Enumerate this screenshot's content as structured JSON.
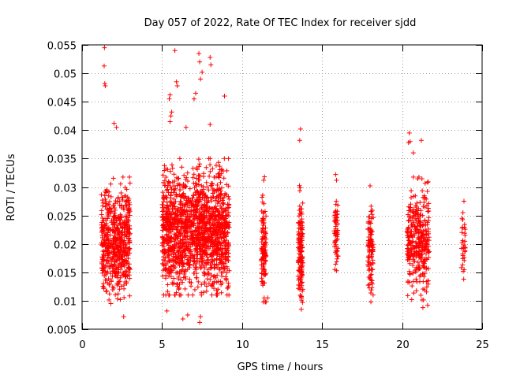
{
  "chart_data": {
    "type": "scatter",
    "title": "Day 057 of 2022, Rate Of TEC Index for receiver sjdd",
    "xlabel": "GPS time / hours",
    "ylabel": "ROTI / TECUs",
    "xlim": [
      0,
      25
    ],
    "ylim": [
      0.005,
      0.055
    ],
    "x_ticks": [
      0,
      5,
      10,
      15,
      20,
      25
    ],
    "y_ticks": [
      0.005,
      0.01,
      0.015,
      0.02,
      0.025,
      0.03,
      0.035,
      0.04,
      0.045,
      0.05,
      0.055
    ],
    "x_tick_labels": [
      "0",
      "5",
      "10",
      "15",
      "20",
      "25"
    ],
    "y_tick_labels": [
      "0.005",
      "0.01",
      "0.015",
      "0.02",
      "0.025",
      "0.03",
      "0.035",
      "0.04",
      "0.045",
      "0.05",
      "0.055"
    ],
    "grid": true,
    "marker": "+",
    "series": [
      {
        "name": "ROTI",
        "color": "#ff0000",
        "clusters": [
          {
            "x_range": [
              1.2,
              3.0
            ],
            "y_center": 0.0205,
            "y_spread": 0.0045,
            "count": 560
          },
          {
            "x_range": [
              5.0,
              9.2
            ],
            "y_center": 0.0225,
            "y_spread": 0.005,
            "count": 1500
          },
          {
            "x_range": [
              11.2,
              11.5
            ],
            "y_center": 0.019,
            "y_spread": 0.004,
            "count": 110
          },
          {
            "x_range": [
              13.5,
              13.8
            ],
            "y_center": 0.019,
            "y_spread": 0.0045,
            "count": 150
          },
          {
            "x_range": [
              15.75,
              16.0
            ],
            "y_center": 0.022,
            "y_spread": 0.003,
            "count": 60
          },
          {
            "x_range": [
              17.85,
              18.2
            ],
            "y_center": 0.019,
            "y_spread": 0.0035,
            "count": 100
          },
          {
            "x_range": [
              20.3,
              21.7
            ],
            "y_center": 0.0205,
            "y_spread": 0.0045,
            "count": 330
          },
          {
            "x_range": [
              23.7,
              23.95
            ],
            "y_center": 0.02,
            "y_spread": 0.003,
            "count": 30
          }
        ],
        "extra_points": [
          [
            1.4,
            0.0545
          ],
          [
            1.38,
            0.0513
          ],
          [
            1.42,
            0.0482
          ],
          [
            1.45,
            0.0478
          ],
          [
            2.0,
            0.0412
          ],
          [
            2.15,
            0.0405
          ],
          [
            2.6,
            0.0072
          ],
          [
            1.8,
            0.0095
          ],
          [
            5.8,
            0.054
          ],
          [
            7.3,
            0.0535
          ],
          [
            7.35,
            0.052
          ],
          [
            7.5,
            0.0502
          ],
          [
            7.4,
            0.049
          ],
          [
            8.0,
            0.0528
          ],
          [
            8.05,
            0.0515
          ],
          [
            5.9,
            0.0485
          ],
          [
            5.95,
            0.0478
          ],
          [
            5.5,
            0.0462
          ],
          [
            5.45,
            0.0455
          ],
          [
            7.1,
            0.0465
          ],
          [
            7.0,
            0.0455
          ],
          [
            5.6,
            0.0432
          ],
          [
            5.55,
            0.0425
          ],
          [
            5.5,
            0.0415
          ],
          [
            6.3,
            0.0068
          ],
          [
            6.6,
            0.0075
          ],
          [
            7.35,
            0.0062
          ],
          [
            7.4,
            0.0072
          ],
          [
            5.3,
            0.0082
          ],
          [
            8.9,
            0.046
          ],
          [
            8.0,
            0.041
          ],
          [
            6.5,
            0.0405
          ],
          [
            13.65,
            0.0402
          ],
          [
            13.6,
            0.0382
          ],
          [
            13.7,
            0.0085
          ],
          [
            11.4,
            0.0318
          ],
          [
            11.35,
            0.0312
          ],
          [
            11.6,
            0.0105
          ],
          [
            11.5,
            0.0098
          ],
          [
            15.85,
            0.0322
          ],
          [
            15.9,
            0.0312
          ],
          [
            15.8,
            0.0155
          ],
          [
            18.0,
            0.0302
          ],
          [
            18.05,
            0.0098
          ],
          [
            18.1,
            0.0132
          ],
          [
            20.45,
            0.0395
          ],
          [
            20.5,
            0.038
          ],
          [
            20.4,
            0.0378
          ],
          [
            21.2,
            0.0382
          ],
          [
            20.7,
            0.036
          ],
          [
            21.3,
            0.0088
          ],
          [
            21.6,
            0.0092
          ],
          [
            20.6,
            0.0102
          ],
          [
            23.8,
            0.0255
          ],
          [
            23.75,
            0.0245
          ],
          [
            23.85,
            0.0138
          ]
        ]
      }
    ]
  }
}
